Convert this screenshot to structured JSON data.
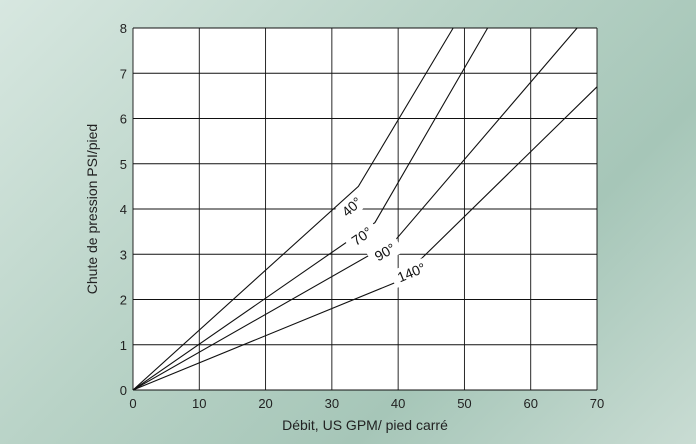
{
  "chart_data": {
    "type": "line",
    "title": "",
    "xlabel": "Débit, US GPM/ pied carré",
    "ylabel": "Chute de pression PSI/pied",
    "xlim": [
      0,
      70
    ],
    "ylim": [
      0,
      8
    ],
    "x_ticks": [
      "0",
      "10",
      "20",
      "30",
      "40",
      "50",
      "60",
      "70"
    ],
    "y_ticks": [
      "0",
      "1",
      "2",
      "3",
      "4",
      "5",
      "6",
      "7",
      "8"
    ],
    "grid": true,
    "colors": {
      "plot_bg": "#ffffff",
      "line": "#111111",
      "grid": "#111111"
    },
    "series": [
      {
        "name": "40°",
        "label_at": [
          33,
          4.05
        ],
        "points": [
          [
            0,
            0
          ],
          [
            34,
            4.5
          ],
          [
            48.3,
            8
          ]
        ]
      },
      {
        "name": "70°",
        "label_at": [
          34.5,
          3.4
        ],
        "points": [
          [
            0,
            0
          ],
          [
            36.5,
            3.7
          ],
          [
            53.5,
            8
          ]
        ]
      },
      {
        "name": "90°",
        "label_at": [
          38,
          3.05
        ],
        "points": [
          [
            0,
            0
          ],
          [
            39.5,
            3.3
          ],
          [
            67,
            8
          ]
        ]
      },
      {
        "name": "140°",
        "label_at": [
          42,
          2.6
        ],
        "points": [
          [
            0,
            0
          ],
          [
            40,
            2.4
          ],
          [
            70,
            6.7
          ]
        ]
      }
    ]
  }
}
